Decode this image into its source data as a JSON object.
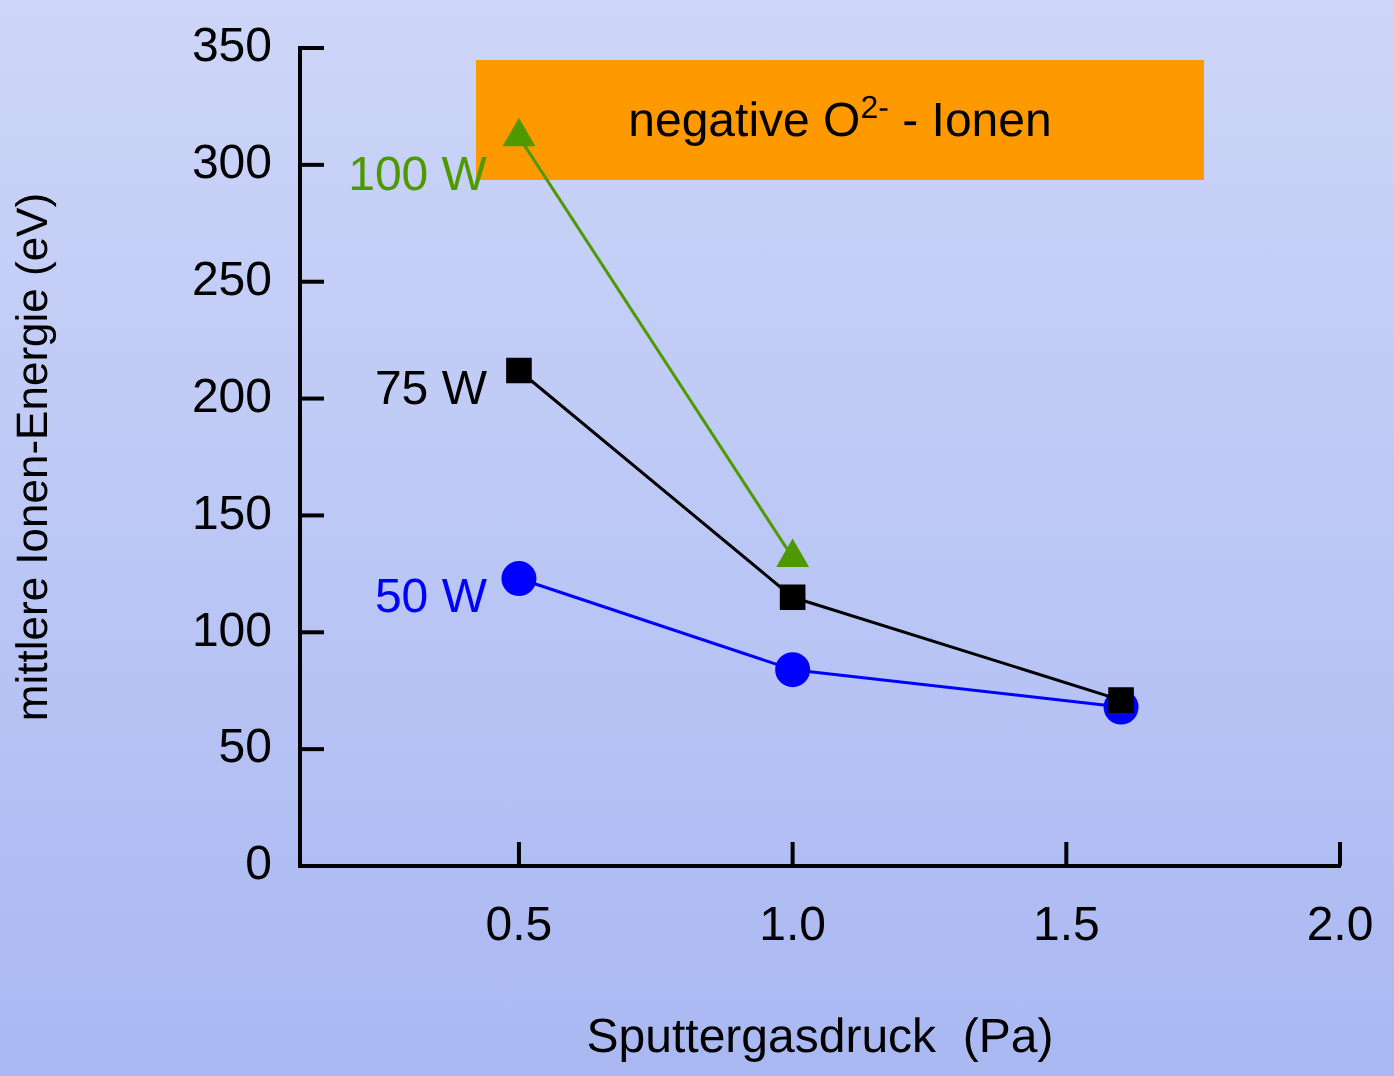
{
  "chart_data": {
    "type": "line",
    "title": "negative O$^{2-}$ - Ionen",
    "xlabel": "Sputtergasdruck  (Pa)",
    "ylabel": "mittlere Ionen-Energie (eV)",
    "xlim": [
      0.1,
      2.0
    ],
    "xticks": [
      {
        "value": 0.5,
        "label": "0.5"
      },
      {
        "value": 1.0,
        "label": "1.0"
      },
      {
        "value": 1.5,
        "label": "1.5"
      },
      {
        "value": 2.0,
        "label": "2.0"
      }
    ],
    "ylim": [
      0,
      350
    ],
    "yticks": [
      0,
      50,
      100,
      150,
      200,
      250,
      300,
      350
    ],
    "grid": false,
    "legend": false,
    "line_style": "solid",
    "series": [
      {
        "name": "50 W",
        "color": "#0000ff",
        "marker": "circle",
        "x": [
          0.5,
          1.0,
          1.6
        ],
        "values": [
          123,
          84,
          68
        ]
      },
      {
        "name": "75 W",
        "color": "#000000",
        "marker": "square",
        "x": [
          0.5,
          1.0,
          1.6
        ],
        "values": [
          212,
          115,
          71
        ]
      },
      {
        "name": "100 W",
        "color": "#4f9900",
        "marker": "triangle",
        "x": [
          0.5,
          1.0
        ],
        "values": [
          312,
          132
        ]
      }
    ]
  }
}
